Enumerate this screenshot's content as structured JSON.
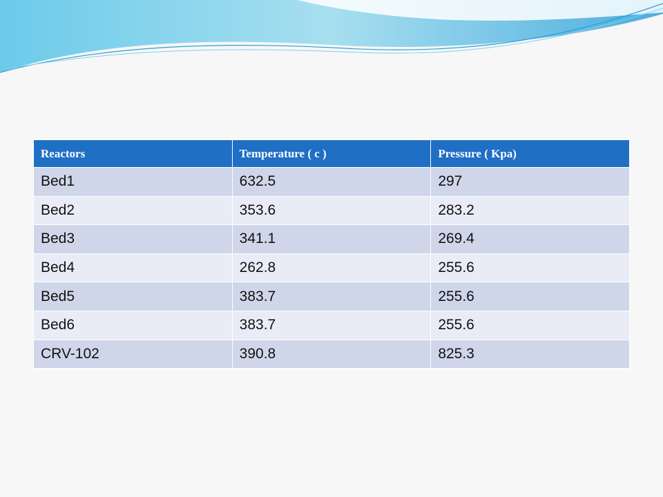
{
  "table": {
    "header": [
      "Reactors",
      "Temperature ( c )",
      "Pressure ( Kpa)"
    ],
    "rows": [
      [
        "Bed1",
        632.5,
        297
      ],
      [
        "Bed2",
        353.6,
        283.2
      ],
      [
        "Bed3",
        341.1,
        269.4
      ],
      [
        "Bed4",
        262.8,
        255.6
      ],
      [
        "Bed5",
        383.7,
        255.6
      ],
      [
        "Bed6",
        383.7,
        255.6
      ],
      [
        "CRV-102",
        390.8,
        825.3
      ]
    ]
  }
}
